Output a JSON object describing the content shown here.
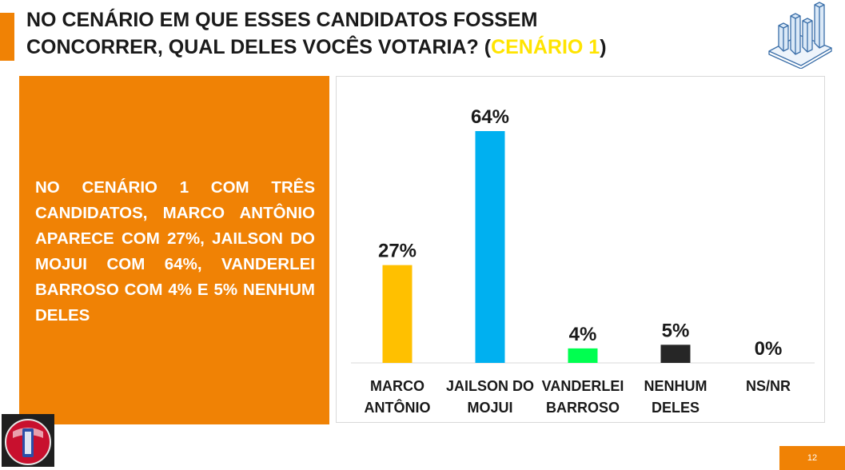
{
  "header": {
    "title_line1": "NO CENÁRIO EM QUE ESSES CANDIDATOS FOSSEM",
    "title_line2_prefix": "CONCORRER, QUAL DELES VOCÊS VOTARIA? (",
    "title_highlight": "CENÁRIO 1",
    "title_line2_suffix": ")",
    "highlight_color": "#ffe400",
    "icon": "bar-chart-3d-icon"
  },
  "summary": {
    "text": "NO CENÁRIO 1 COM TRÊS CANDIDATOS, MARCO ANTÔNIO APARECE COM 27%, JAILSON DO MOJUI COM 64%, VANDERLEI BARROSO COM 4% E 5% NENHUM DELES",
    "background_color": "#f08205"
  },
  "chart_data": {
    "type": "bar",
    "categories": [
      [
        "MARCO",
        "ANTÔNIO"
      ],
      [
        "JAILSON DO",
        "MOJUI"
      ],
      [
        "VANDERLEI",
        "BARROSO"
      ],
      [
        "NENHUM",
        "DELES"
      ],
      [
        "NS/NR"
      ]
    ],
    "values": [
      27,
      64,
      4,
      5,
      0
    ],
    "data_labels": [
      "27%",
      "64%",
      "4%",
      "5%",
      "0%"
    ],
    "colors": [
      "#ffc000",
      "#00b0f0",
      "#00ff50",
      "#262626",
      "#7f7f7f"
    ],
    "ylim": [
      0,
      64
    ],
    "grid": false,
    "legend": "none"
  },
  "footer": {
    "page_number": "12",
    "logo": "brand-logo-icon"
  }
}
